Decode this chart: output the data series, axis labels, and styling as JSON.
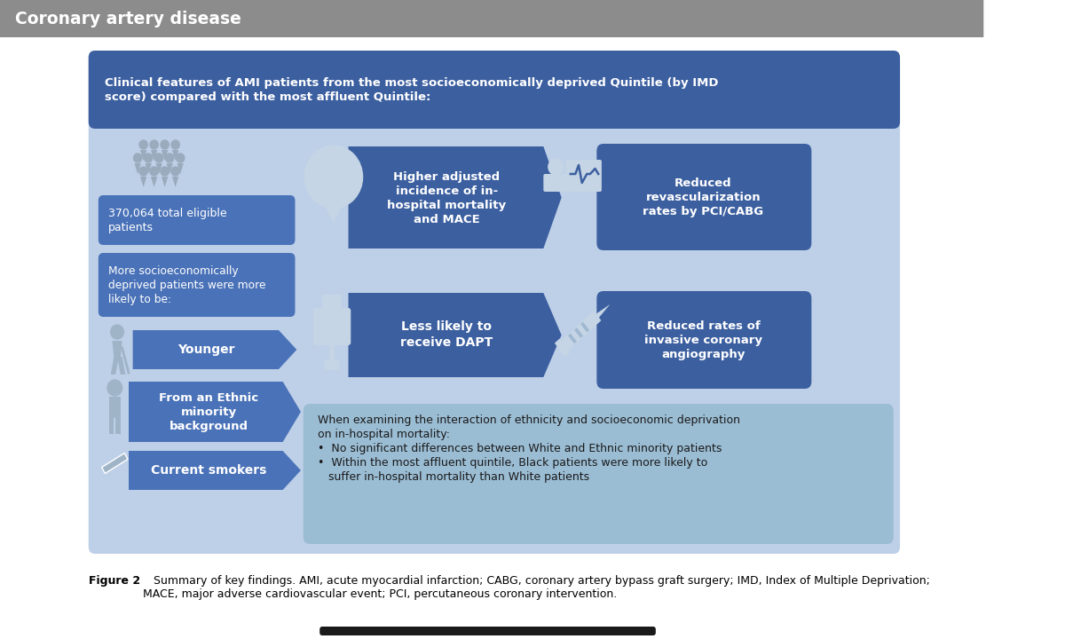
{
  "bg_color": "#ffffff",
  "header_bg": "#8c8c8c",
  "header_text": "Coronary artery disease",
  "header_text_color": "#ffffff",
  "main_bg": "#bed0e8",
  "title_bg": "#3c5fa0",
  "title_text": "Clinical features of AMI patients from the most socioeconomically deprived Quintile (by IMD\nscore) compared with the most affluent Quintile:",
  "title_text_color": "#ffffff",
  "dark_box": "#3c5fa0",
  "medium_box": "#4a72b8",
  "icon_color": "#c5d5e5",
  "box_text_color": "#ffffff",
  "dark_text": "#1a1a1a",
  "caption_bold": "Figure 2",
  "caption_text": "   Summary of key findings. AMI, acute myocardial infarction; CABG, coronary artery bypass graft surgery; IMD, Index of Multiple Deprivation;\nMACE, major adverse cardiovascular event; PCI, percutaneous coronary intervention.",
  "box1_text": "370,064 total eligible\npatients",
  "box2_text": "More socioeconomically\ndeprived patients were more\nlikely to be:",
  "box_younger": "Younger",
  "box_ethnic": "From an Ethnic\nminority\nbackground",
  "box_smokers": "Current smokers",
  "arrow1_text": "Higher adjusted\nincidence of in-\nhospital mortality\nand MACE",
  "arrow2_text": "Less likely to\nreceive DAPT",
  "box_revasc": "Reduced\nrevascularization\nrates by PCI/CABG",
  "box_angio": "Reduced rates of\ninvasive coronary\nangiography",
  "bottom_box_text": "When examining the interaction of ethnicity and socioeconomic deprivation\non in-hospital mortality:\n•  No significant differences between White and Ethnic minority patients\n•  Within the most affluent quintile, Black patients were more likely to\n   suffer in-hospital mortality than White patients"
}
